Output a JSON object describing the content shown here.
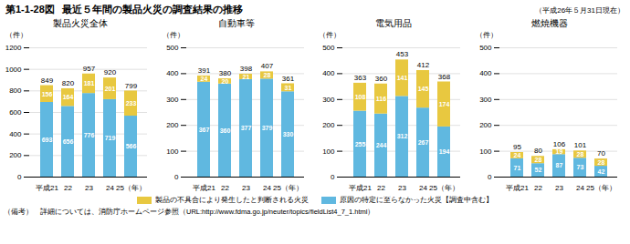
{
  "title_prefix": "第1-1-28図",
  "title": "最近５年間の製品火災の調査結果の推移",
  "subtitle": "（平成26年５月31日現在）",
  "note": "（備考）　詳細については、消防庁ホームページ参照（URL:http://www.fdma.go.jp/neuter/topics/fieldList4_7_1.html）",
  "legend": "bottom",
  "chart_data": [
    {
      "type": "bar",
      "stacked": true,
      "title": "製品火災全体",
      "ylabel": "（件）",
      "categories": [
        "平成21",
        "22",
        "23",
        "24",
        "25（年）"
      ],
      "series": [
        {
          "name": "原因の特定に至らなかった火災【調査中含む】",
          "color": "#60b8e0",
          "values": [
            693,
            656,
            776,
            719,
            566
          ]
        },
        {
          "name": "製品の不具合により発生したと判断される火災",
          "color": "#e8c840",
          "values": [
            156,
            164,
            181,
            201,
            233
          ]
        }
      ],
      "totals": [
        849,
        820,
        957,
        920,
        799
      ],
      "ylim": [
        0,
        1200
      ],
      "yticks": [
        0,
        200,
        400,
        600,
        800,
        1000,
        1200
      ],
      "grid": true,
      "data_labels": true
    },
    {
      "type": "bar",
      "stacked": true,
      "title": "自動車等",
      "ylabel": "（件）",
      "categories": [
        "平成21",
        "22",
        "23",
        "24",
        "25（年）"
      ],
      "series": [
        {
          "name": "原因の特定に至らなかった火災【調査中含む】",
          "color": "#60b8e0",
          "values": [
            367,
            360,
            377,
            379,
            330
          ]
        },
        {
          "name": "製品の不具合により発生したと判断される火災",
          "color": "#e8c840",
          "values": [
            24,
            20,
            21,
            28,
            31
          ]
        }
      ],
      "totals": [
        391,
        380,
        398,
        407,
        361
      ],
      "ylim": [
        0,
        500
      ],
      "yticks": [
        0,
        100,
        200,
        300,
        400,
        500
      ],
      "grid": true,
      "data_labels": true
    },
    {
      "type": "bar",
      "stacked": true,
      "title": "電気用品",
      "ylabel": "（件）",
      "categories": [
        "平成21",
        "22",
        "23",
        "24",
        "25（年）"
      ],
      "series": [
        {
          "name": "原因の特定に至らなかった火災【調査中含む】",
          "color": "#60b8e0",
          "values": [
            255,
            244,
            312,
            267,
            194
          ]
        },
        {
          "name": "製品の不具合により発生したと判断される火災",
          "color": "#e8c840",
          "values": [
            108,
            116,
            141,
            145,
            174
          ]
        }
      ],
      "totals": [
        363,
        360,
        453,
        412,
        368
      ],
      "ylim": [
        0,
        500
      ],
      "yticks": [
        0,
        100,
        200,
        300,
        400,
        500
      ],
      "grid": true,
      "data_labels": true
    },
    {
      "type": "bar",
      "stacked": true,
      "title": "燃焼機器",
      "ylabel": "（件）",
      "categories": [
        "平成21",
        "22",
        "23",
        "24",
        "25（年）"
      ],
      "series": [
        {
          "name": "原因の特定に至らなかった火災【調査中含む】",
          "color": "#60b8e0",
          "values": [
            71,
            52,
            87,
            73,
            42
          ]
        },
        {
          "name": "製品の不具合により発生したと判断される火災",
          "color": "#e8c840",
          "values": [
            24,
            28,
            19,
            28,
            28
          ]
        }
      ],
      "totals": [
        95,
        80,
        106,
        101,
        70
      ],
      "ylim": [
        0,
        500
      ],
      "yticks": [
        0,
        100,
        200,
        300,
        400,
        500
      ],
      "grid": true,
      "data_labels": true
    }
  ]
}
